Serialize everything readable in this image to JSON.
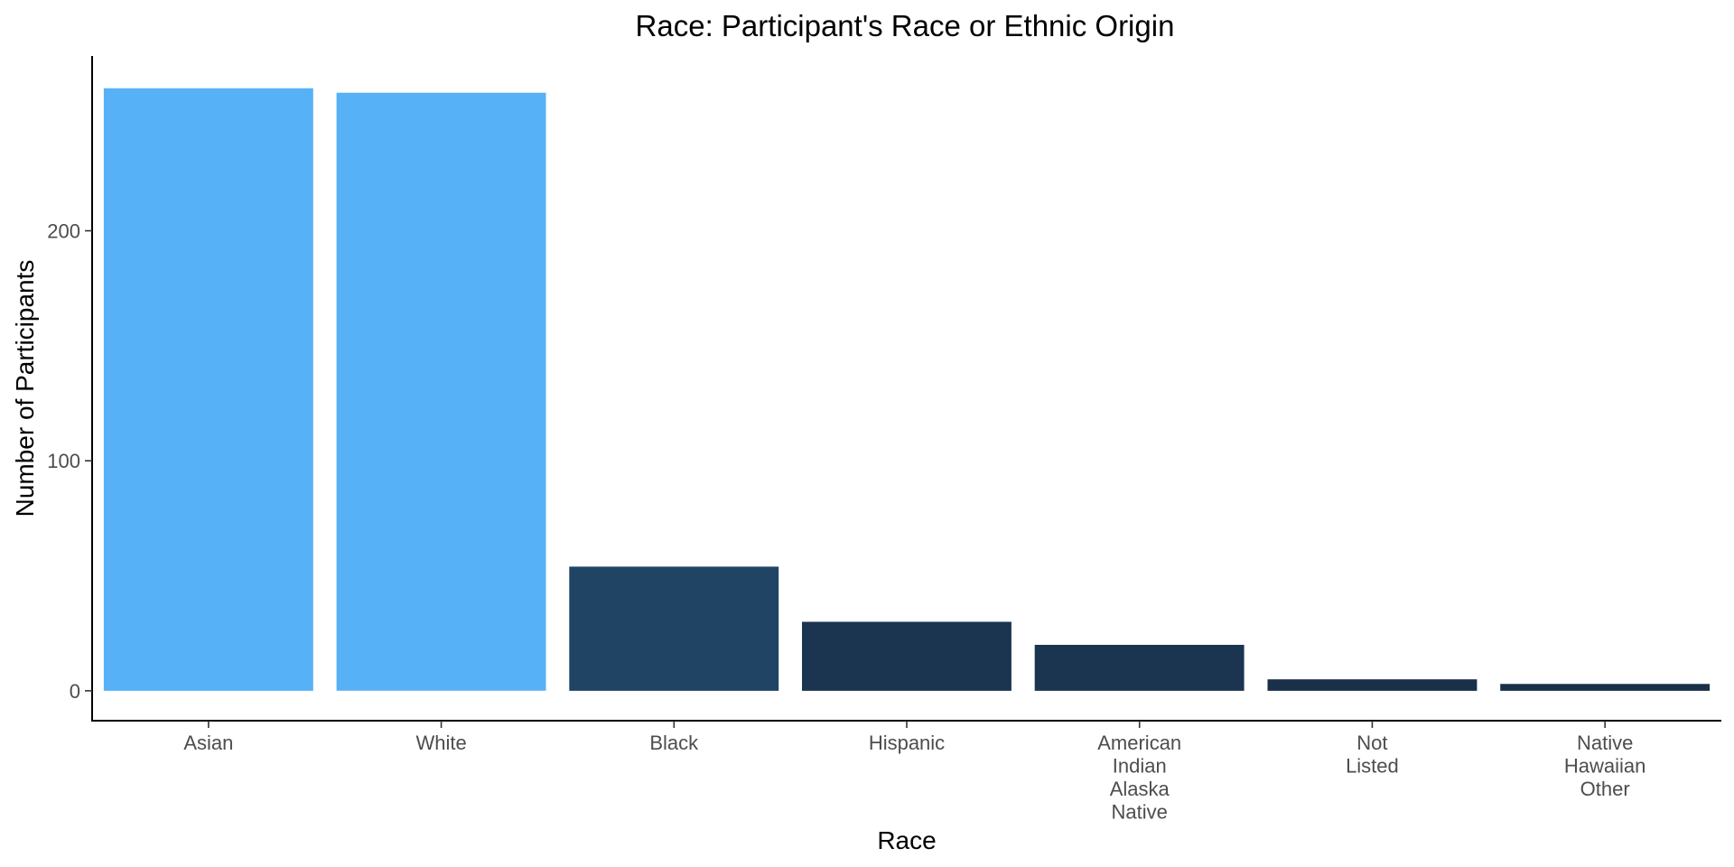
{
  "chart_data": {
    "type": "bar",
    "title": "Race: Participant's Race or Ethnic Origin",
    "xlabel": "Race",
    "ylabel": "Number of Participants",
    "categories": [
      [
        "Asian"
      ],
      [
        "White"
      ],
      [
        "Black"
      ],
      [
        "Hispanic"
      ],
      [
        "American",
        "Indian",
        "Alaska",
        "Native"
      ],
      [
        "Not",
        "Listed"
      ],
      [
        "Native",
        "Hawaiian",
        "Other"
      ]
    ],
    "values": [
      262,
      260,
      54,
      30,
      20,
      5,
      3
    ],
    "bar_colors": [
      "#56b1f7",
      "#56b1f7",
      "#204464",
      "#1b3550",
      "#1b3550",
      "#1a2f48",
      "#1a2f48"
    ],
    "yticks": [
      0,
      100,
      200
    ],
    "ylim": [
      -13,
      276
    ],
    "grid": false,
    "legend": "none"
  }
}
